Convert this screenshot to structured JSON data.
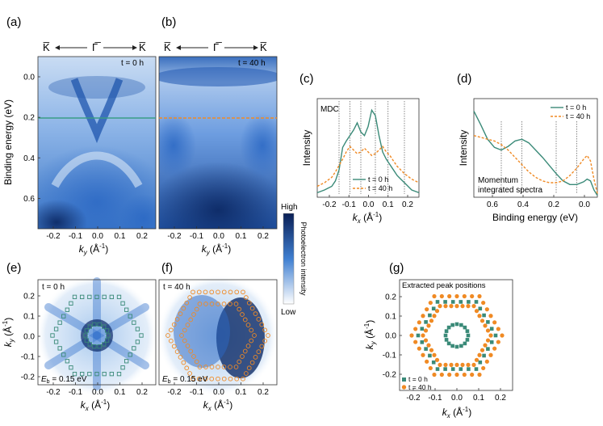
{
  "panels": {
    "a": {
      "label": "(a)",
      "time": "t = 0 h",
      "dir_left": "K̅",
      "dir_center": "Γ̅",
      "dir_right": "K̅",
      "ylabel": "Binding energy (eV)",
      "yticks": [
        "0.0",
        "0.2",
        "0.4",
        "0.6"
      ],
      "xticks": [
        "-0.2",
        "-0.1",
        "0.0",
        "0.1",
        "0.2"
      ],
      "xlabel": "k_y (Å⁻¹)",
      "cut_line_energy_eV": 0.2,
      "cut_color": "#3a9c86"
    },
    "b": {
      "label": "(b)",
      "time": "t = 40 h",
      "dir_left": "K̅",
      "dir_center": "Γ̅",
      "dir_right": "K̅",
      "xticks": [
        "-0.2",
        "-0.1",
        "0.0",
        "0.1",
        "0.2"
      ],
      "xlabel": "k_y (Å⁻¹)",
      "cut_line_energy_eV": 0.2,
      "cut_color": "#f08a24"
    },
    "colorbar": {
      "high": "High",
      "low": "Low",
      "label": "Photoelectron intensity"
    },
    "c": {
      "label": "(c)",
      "tag": "MDC",
      "ylabel": "Intensity",
      "xlabel": "k_x (Å⁻¹)",
      "xticks": [
        "-0.2",
        "-0.1",
        "0.0",
        "0.1",
        "0.2"
      ],
      "legend": [
        "t = 0 h",
        "t = 40 h"
      ]
    },
    "d": {
      "label": "(d)",
      "ylabel": "Intensity",
      "xlabel": "Binding energy (eV)",
      "xticks": [
        "0.6",
        "0.4",
        "0.2",
        "0.0"
      ],
      "note_line1": "Momentum",
      "note_line2": "integrated spectra",
      "legend": [
        "t = 0 h",
        "t = 40 h"
      ]
    },
    "e": {
      "label": "(e)",
      "time": "t = 0 h",
      "energy": "E_b = 0.15 eV",
      "ylabel": "k_y (Å⁻¹)",
      "xlabel": "k_x (Å⁻¹)",
      "yticks": [
        "0.2",
        "0.1",
        "0.0",
        "-0.1",
        "-0.2"
      ],
      "xticks": [
        "-0.2",
        "-0.1",
        "0.0",
        "0.1",
        "0.2"
      ]
    },
    "f": {
      "label": "(f)",
      "time": "t = 40 h",
      "energy": "E_b = 0.15 eV",
      "xlabel": "k_x (Å⁻¹)",
      "xticks": [
        "-0.2",
        "-0.1",
        "0.0",
        "0.1",
        "0.2"
      ]
    },
    "g": {
      "label": "(g)",
      "title": "Extracted peak positions",
      "ylabel": "k_y (Å⁻¹)",
      "xlabel": "k_x (Å⁻¹)",
      "yticks": [
        "0.2",
        "0.1",
        "0.0",
        "-0.1",
        "-0.2"
      ],
      "xticks": [
        "-0.2",
        "-0.1",
        "0.0",
        "0.1",
        "0.2"
      ],
      "legend": [
        "t = 0 h",
        "t = 40 h"
      ]
    }
  },
  "colors": {
    "t0": "#3a8a78",
    "t40": "#f08a24",
    "map_dark": "#0d2a66",
    "map_light": "#ffffff"
  },
  "chart_data": [
    {
      "type": "line",
      "panel": "c",
      "x": [
        -0.28,
        -0.24,
        -0.2,
        -0.18,
        -0.16,
        -0.14,
        -0.12,
        -0.1,
        -0.08,
        -0.06,
        -0.04,
        -0.02,
        0.0,
        0.02,
        0.04,
        0.06,
        0.08,
        0.1,
        0.12,
        0.14,
        0.16,
        0.18,
        0.2,
        0.24,
        0.28
      ],
      "series": [
        {
          "name": "t = 0 h",
          "values": [
            0.05,
            0.08,
            0.12,
            0.18,
            0.3,
            0.55,
            0.62,
            0.68,
            0.74,
            0.82,
            0.72,
            0.68,
            0.78,
            0.96,
            0.9,
            0.68,
            0.5,
            0.42,
            0.36,
            0.3,
            0.24,
            0.2,
            0.16,
            0.08,
            0.05
          ]
        },
        {
          "name": "t = 40 h",
          "values": [
            0.12,
            0.16,
            0.22,
            0.28,
            0.35,
            0.42,
            0.5,
            0.56,
            0.52,
            0.48,
            0.5,
            0.54,
            0.5,
            0.46,
            0.48,
            0.52,
            0.56,
            0.5,
            0.46,
            0.4,
            0.34,
            0.3,
            0.26,
            0.2,
            0.16
          ]
        }
      ],
      "xlim": [
        -0.28,
        0.28
      ]
    },
    {
      "type": "line",
      "panel": "d",
      "x": [
        0.72,
        0.68,
        0.64,
        0.6,
        0.56,
        0.52,
        0.48,
        0.44,
        0.4,
        0.36,
        0.32,
        0.28,
        0.24,
        0.2,
        0.16,
        0.12,
        0.08,
        0.06,
        0.04,
        0.02,
        0.0
      ],
      "series": [
        {
          "name": "t = 0 h",
          "values": [
            0.95,
            0.8,
            0.64,
            0.55,
            0.52,
            0.56,
            0.62,
            0.64,
            0.6,
            0.52,
            0.44,
            0.35,
            0.26,
            0.18,
            0.14,
            0.14,
            0.17,
            0.2,
            0.18,
            0.08,
            0.02
          ]
        },
        {
          "name": "t = 40 h",
          "values": [
            0.68,
            0.66,
            0.64,
            0.62,
            0.58,
            0.52,
            0.44,
            0.36,
            0.28,
            0.22,
            0.18,
            0.16,
            0.16,
            0.18,
            0.24,
            0.32,
            0.42,
            0.46,
            0.4,
            0.2,
            0.04
          ]
        }
      ],
      "xlim": [
        0.72,
        0.0
      ]
    },
    {
      "type": "scatter",
      "panel": "g",
      "series": [
        {
          "name": "t = 0 h",
          "shape": "hexagon+ring",
          "hex_radius": 0.18,
          "ring_radius": 0.06
        },
        {
          "name": "t = 40 h",
          "shape": "double-hexagon",
          "hex_radius_outer": 0.23,
          "hex_radius_inner": 0.17
        }
      ],
      "xlim": [
        -0.25,
        0.25
      ],
      "ylim": [
        -0.25,
        0.25
      ]
    }
  ]
}
